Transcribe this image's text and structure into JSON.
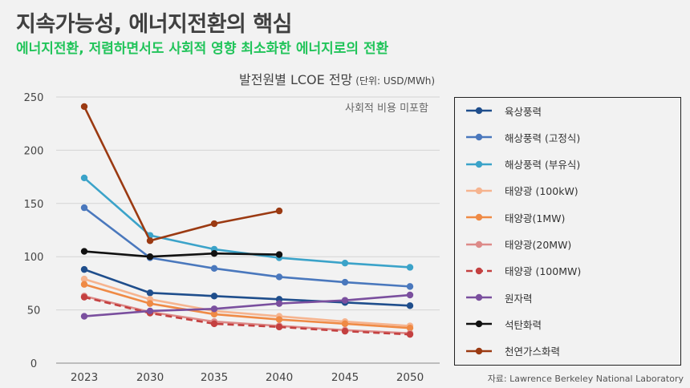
{
  "header": {
    "title": "지속가능성, 에너지전환의 핵심",
    "subtitle": "에너지전환, 저렴하면서도 사회적 영향 최소화한 에너지로의 전환"
  },
  "chart_title": "발전원별 LCOE 전망",
  "chart_unit": "(단위: USD/MWh)",
  "note": "사회적 비용 미포함",
  "source": "자료: Lawrence Berkeley National Laboratory",
  "chart_data": {
    "type": "line",
    "x": [
      2023,
      2030,
      2035,
      2040,
      2045,
      2050
    ],
    "ylim": [
      0,
      250
    ],
    "yticks": [
      0,
      50,
      100,
      150,
      200,
      250
    ],
    "grid": true,
    "legend_position": "right",
    "series": [
      {
        "name": "육상풍력",
        "color": "#1f4e8c",
        "dash": false,
        "values": [
          88,
          66,
          63,
          60,
          57,
          54
        ]
      },
      {
        "name": "해상풍력 (고정식)",
        "color": "#4a78bd",
        "dash": false,
        "values": [
          146,
          99,
          89,
          81,
          76,
          72
        ]
      },
      {
        "name": "해상풍력 (부유식)",
        "color": "#3ba3c9",
        "dash": false,
        "values": [
          174,
          120,
          107,
          99,
          94,
          90
        ]
      },
      {
        "name": "태양광 (100kW)",
        "color": "#f6b48f",
        "dash": false,
        "values": [
          79,
          60,
          49,
          44,
          39,
          35
        ]
      },
      {
        "name": "태양광(1MW)",
        "color": "#ef8a45",
        "dash": false,
        "values": [
          74,
          56,
          46,
          41,
          37,
          33
        ]
      },
      {
        "name": "태양광(20MW)",
        "color": "#dd8a88",
        "dash": false,
        "values": [
          63,
          48,
          39,
          35,
          31,
          28
        ]
      },
      {
        "name": "태양광 (100MW)",
        "color": "#c44040",
        "dash": true,
        "values": [
          62,
          47,
          37,
          34,
          30,
          27
        ]
      },
      {
        "name": "원자력",
        "color": "#7a4f9e",
        "dash": false,
        "values": [
          44,
          49,
          51,
          56,
          59,
          64
        ]
      },
      {
        "name": "석탄화력",
        "color": "#111111",
        "dash": false,
        "values": [
          105,
          100,
          103,
          102,
          null,
          null
        ]
      },
      {
        "name": "천연가스화력",
        "color": "#9b3a12",
        "dash": false,
        "values": [
          241,
          115,
          131,
          143,
          null,
          null
        ]
      }
    ]
  }
}
